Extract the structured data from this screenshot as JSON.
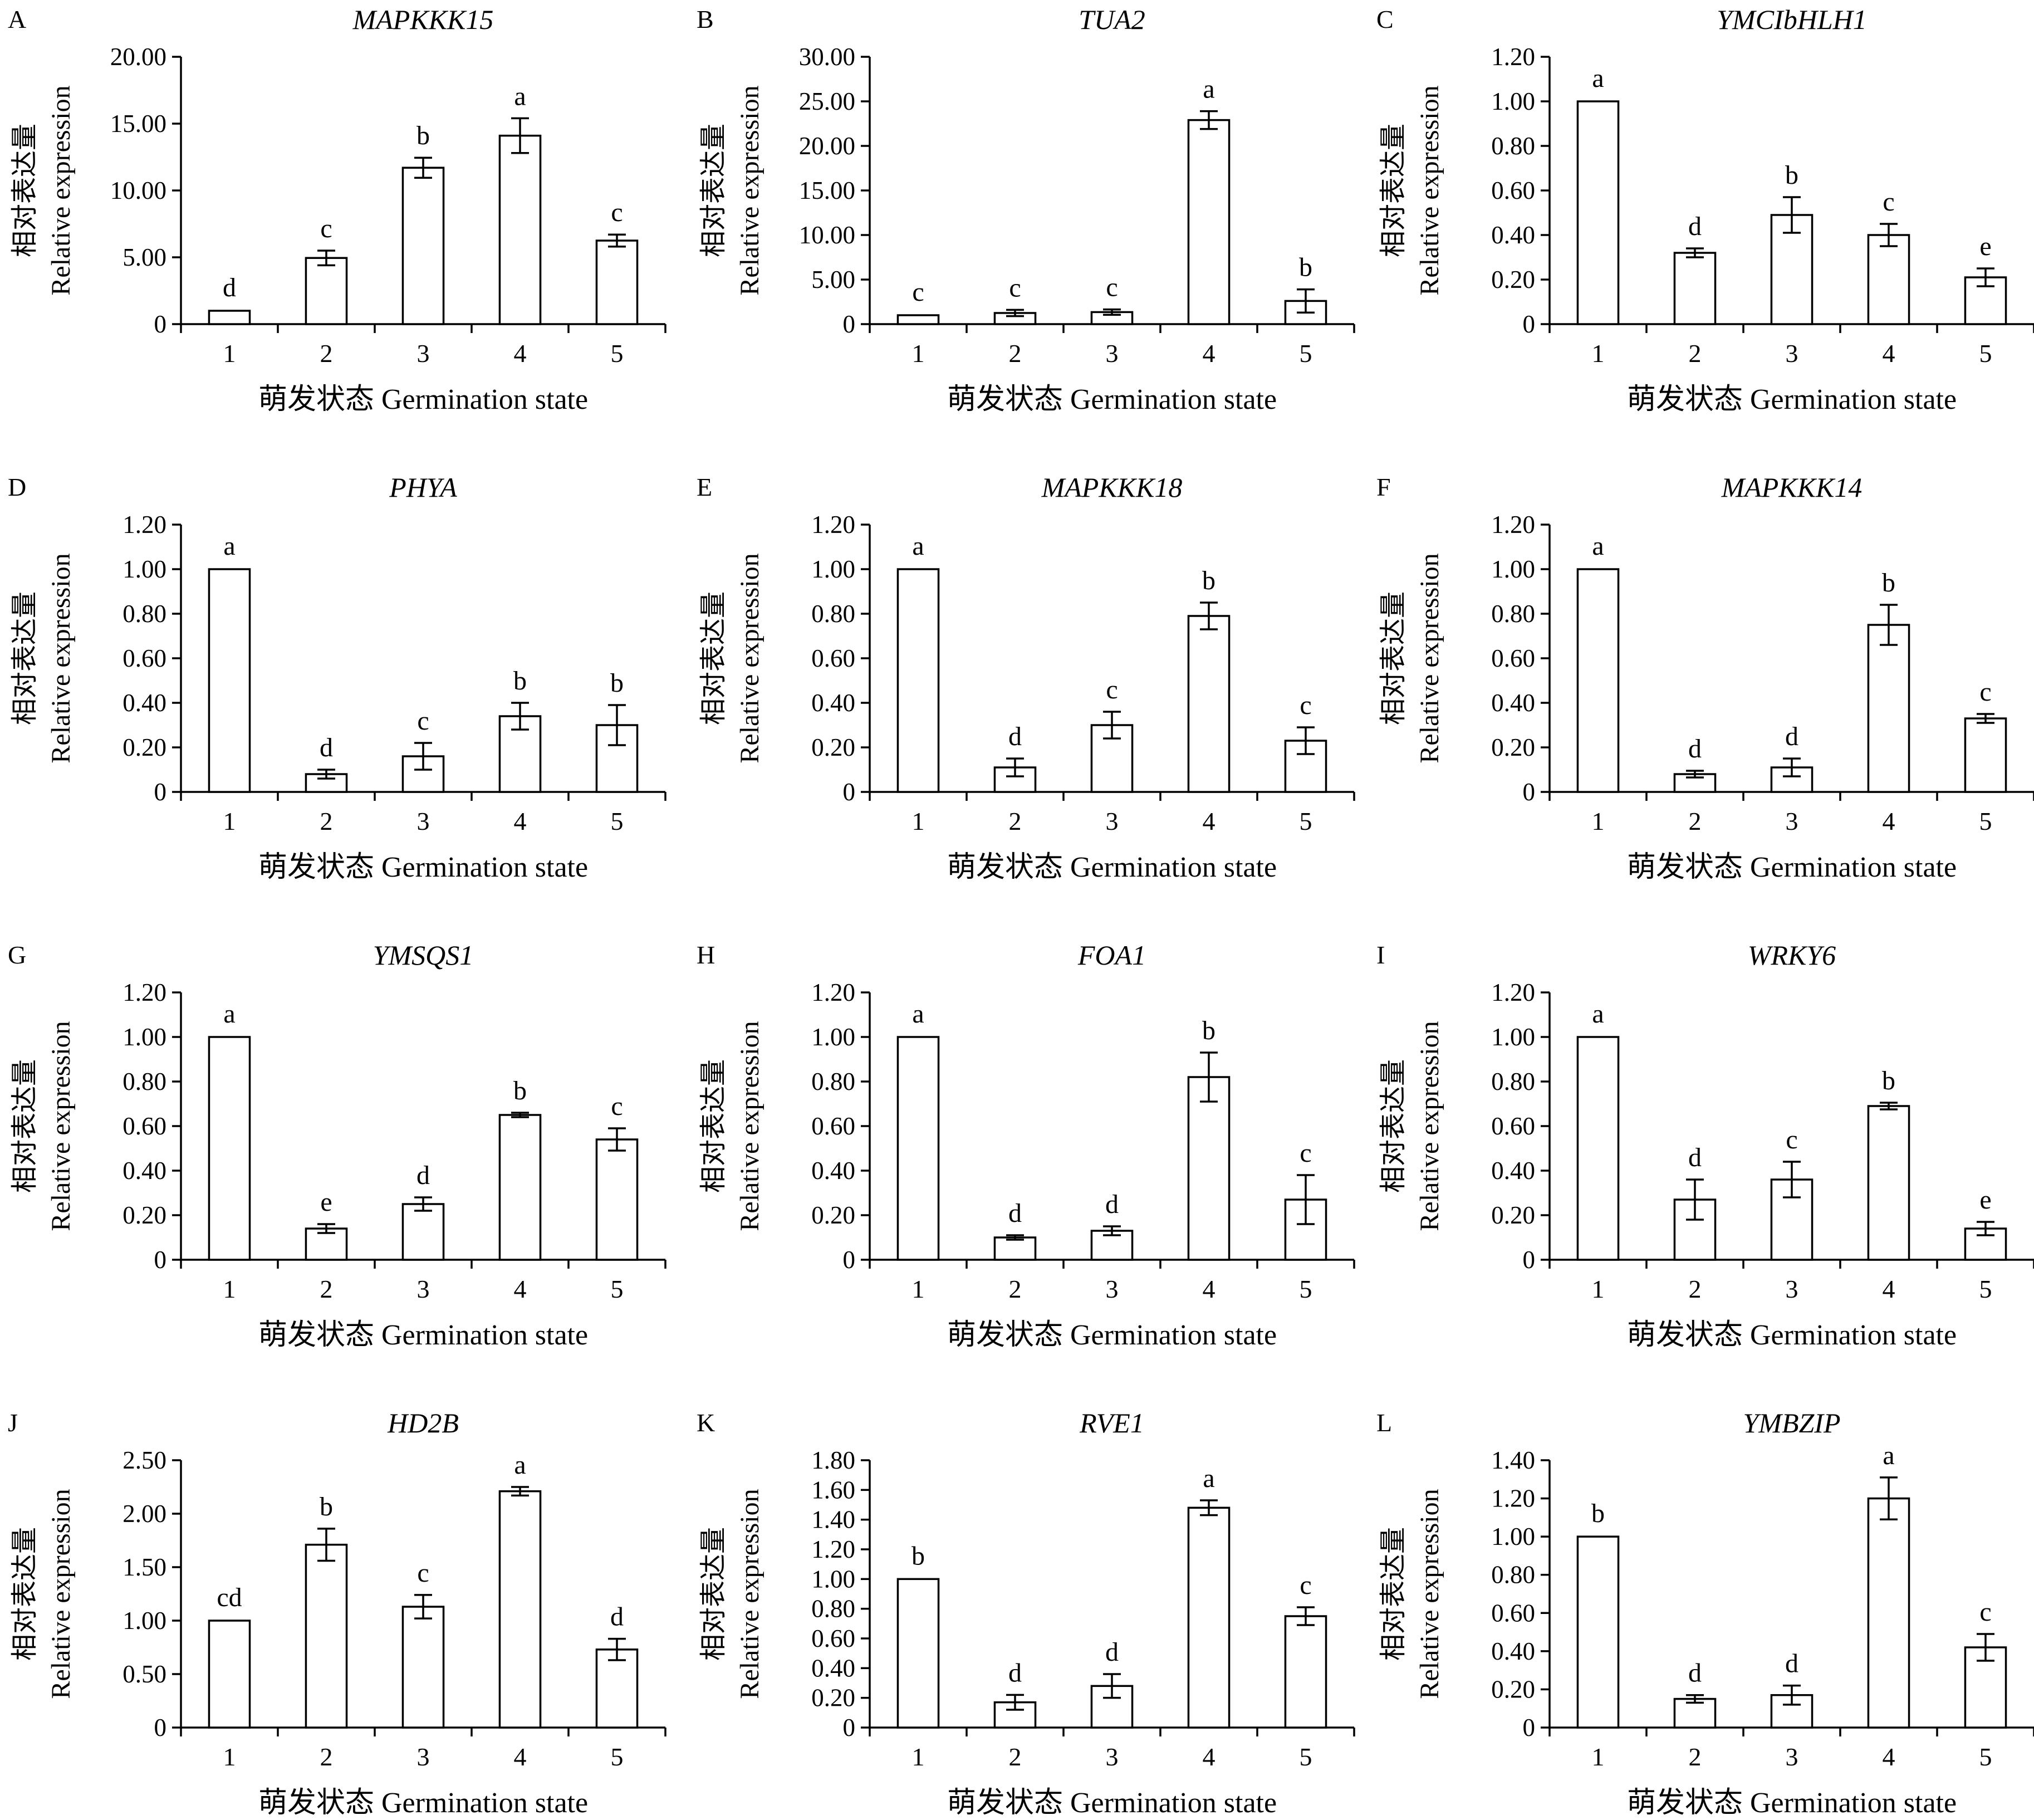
{
  "figure": {
    "ylabel_cn": "相对表达量",
    "ylabel_en": "Relative expression",
    "xlabel": "萌发状态  Germination state",
    "categories": [
      "1",
      "2",
      "3",
      "4",
      "5"
    ]
  },
  "chart_data": [
    {
      "type": "bar",
      "panel": "A",
      "title": "MAPKKK15",
      "categories": [
        "1",
        "2",
        "3",
        "4",
        "5"
      ],
      "values": [
        1.0,
        4.95,
        11.7,
        14.1,
        6.25
      ],
      "errors": [
        0,
        0.55,
        0.75,
        1.3,
        0.45
      ],
      "sig": [
        "d",
        "c",
        "b",
        "a",
        "c"
      ],
      "ylim": [
        0,
        20
      ],
      "yticks": [
        "0",
        "5.00",
        "10.00",
        "15.00",
        "20.00"
      ],
      "ylabel": "相对表达量 Relative expression",
      "xlabel": "萌发状态 Germination state"
    },
    {
      "type": "bar",
      "panel": "B",
      "title": "TUA2",
      "categories": [
        "1",
        "2",
        "3",
        "4",
        "5"
      ],
      "values": [
        1.0,
        1.25,
        1.35,
        22.9,
        2.6
      ],
      "errors": [
        0,
        0.35,
        0.3,
        1.0,
        1.3
      ],
      "sig": [
        "c",
        "c",
        "c",
        "a",
        "b"
      ],
      "ylim": [
        0,
        30
      ],
      "yticks": [
        "0",
        "5.00",
        "10.00",
        "15.00",
        "20.00",
        "25.00",
        "30.00"
      ],
      "ylabel": "相对表达量 Relative expression",
      "xlabel": "萌发状态 Germination state"
    },
    {
      "type": "bar",
      "panel": "C",
      "title": "YMCIbHLH1",
      "categories": [
        "1",
        "2",
        "3",
        "4",
        "5"
      ],
      "values": [
        1.0,
        0.32,
        0.49,
        0.4,
        0.21
      ],
      "errors": [
        0,
        0.02,
        0.08,
        0.05,
        0.04
      ],
      "sig": [
        "a",
        "d",
        "b",
        "c",
        "e"
      ],
      "ylim": [
        0,
        1.2
      ],
      "yticks": [
        "0",
        "0.20",
        "0.40",
        "0.60",
        "0.80",
        "1.00",
        "1.20"
      ],
      "ylabel": "相对表达量 Relative expression",
      "xlabel": "萌发状态 Germination state"
    },
    {
      "type": "bar",
      "panel": "D",
      "title": "PHYA",
      "categories": [
        "1",
        "2",
        "3",
        "4",
        "5"
      ],
      "values": [
        1.0,
        0.08,
        0.16,
        0.34,
        0.3
      ],
      "errors": [
        0,
        0.02,
        0.06,
        0.06,
        0.09
      ],
      "sig": [
        "a",
        "d",
        "c",
        "b",
        "b"
      ],
      "ylim": [
        0,
        1.2
      ],
      "yticks": [
        "0",
        "0.20",
        "0.40",
        "0.60",
        "0.80",
        "1.00",
        "1.20"
      ],
      "ylabel": "相对表达量 Relative expression",
      "xlabel": "萌发状态 Germination state"
    },
    {
      "type": "bar",
      "panel": "E",
      "title": "MAPKKK18",
      "categories": [
        "1",
        "2",
        "3",
        "4",
        "5"
      ],
      "values": [
        1.0,
        0.11,
        0.3,
        0.79,
        0.23
      ],
      "errors": [
        0,
        0.04,
        0.06,
        0.06,
        0.06
      ],
      "sig": [
        "a",
        "d",
        "c",
        "b",
        "c"
      ],
      "ylim": [
        0,
        1.2
      ],
      "yticks": [
        "0",
        "0.20",
        "0.40",
        "0.60",
        "0.80",
        "1.00",
        "1.20"
      ],
      "ylabel": "相对表达量 Relative expression",
      "xlabel": "萌发状态 Germination state"
    },
    {
      "type": "bar",
      "panel": "F",
      "title": "MAPKKK14",
      "categories": [
        "1",
        "2",
        "3",
        "4",
        "5"
      ],
      "values": [
        1.0,
        0.08,
        0.11,
        0.75,
        0.33
      ],
      "errors": [
        0,
        0.015,
        0.04,
        0.09,
        0.02
      ],
      "sig": [
        "a",
        "d",
        "d",
        "b",
        "c"
      ],
      "ylim": [
        0,
        1.2
      ],
      "yticks": [
        "0",
        "0.20",
        "0.40",
        "0.60",
        "0.80",
        "1.00",
        "1.20"
      ],
      "ylabel": "相对表达量 Relative expression",
      "xlabel": "萌发状态 Germination state"
    },
    {
      "type": "bar",
      "panel": "G",
      "title": "YMSQS1",
      "categories": [
        "1",
        "2",
        "3",
        "4",
        "5"
      ],
      "values": [
        1.0,
        0.14,
        0.25,
        0.65,
        0.54
      ],
      "errors": [
        0,
        0.02,
        0.03,
        0.01,
        0.05
      ],
      "sig": [
        "a",
        "e",
        "d",
        "b",
        "c"
      ],
      "ylim": [
        0,
        1.2
      ],
      "yticks": [
        "0",
        "0.20",
        "0.40",
        "0.60",
        "0.80",
        "1.00",
        "1.20"
      ],
      "ylabel": "相对表达量 Relative expression",
      "xlabel": "萌发状态 Germination state"
    },
    {
      "type": "bar",
      "panel": "H",
      "title": "FOA1",
      "categories": [
        "1",
        "2",
        "3",
        "4",
        "5"
      ],
      "values": [
        1.0,
        0.1,
        0.13,
        0.82,
        0.27
      ],
      "errors": [
        0,
        0.01,
        0.02,
        0.11,
        0.11
      ],
      "sig": [
        "a",
        "d",
        "d",
        "b",
        "c"
      ],
      "ylim": [
        0,
        1.2
      ],
      "yticks": [
        "0",
        "0.20",
        "0.40",
        "0.60",
        "0.80",
        "1.00",
        "1.20"
      ],
      "ylabel": "相对表达量 Relative expression",
      "xlabel": "萌发状态 Germination state"
    },
    {
      "type": "bar",
      "panel": "I",
      "title": "WRKY6",
      "categories": [
        "1",
        "2",
        "3",
        "4",
        "5"
      ],
      "values": [
        1.0,
        0.27,
        0.36,
        0.69,
        0.14
      ],
      "errors": [
        0,
        0.09,
        0.08,
        0.015,
        0.03
      ],
      "sig": [
        "a",
        "d",
        "c",
        "b",
        "e"
      ],
      "ylim": [
        0,
        1.2
      ],
      "yticks": [
        "0",
        "0.20",
        "0.40",
        "0.60",
        "0.80",
        "1.00",
        "1.20"
      ],
      "ylabel": "相对表达量 Relative expression",
      "xlabel": "萌发状态 Germination state"
    },
    {
      "type": "bar",
      "panel": "J",
      "title": "HD2B",
      "categories": [
        "1",
        "2",
        "3",
        "4",
        "5"
      ],
      "values": [
        1.0,
        1.71,
        1.13,
        2.21,
        0.73
      ],
      "errors": [
        0,
        0.15,
        0.11,
        0.04,
        0.1
      ],
      "sig": [
        "cd",
        "b",
        "c",
        "a",
        "d"
      ],
      "ylim": [
        0,
        2.5
      ],
      "yticks": [
        "0",
        "0.50",
        "1.00",
        "1.50",
        "2.00",
        "2.50"
      ],
      "ylabel": "相对表达量 Relative expression",
      "xlabel": "萌发状态 Germination state"
    },
    {
      "type": "bar",
      "panel": "K",
      "title": "RVE1",
      "categories": [
        "1",
        "2",
        "3",
        "4",
        "5"
      ],
      "values": [
        1.0,
        0.17,
        0.28,
        1.48,
        0.75
      ],
      "errors": [
        0,
        0.05,
        0.08,
        0.05,
        0.06
      ],
      "sig": [
        "b",
        "d",
        "d",
        "a",
        "c"
      ],
      "ylim": [
        0,
        1.8
      ],
      "yticks": [
        "0",
        "0.20",
        "0.40",
        "0.60",
        "0.80",
        "1.00",
        "1.20",
        "1.40",
        "1.60",
        "1.80"
      ],
      "ylabel": "相对表达量 Relative expression",
      "xlabel": "萌发状态 Germination state"
    },
    {
      "type": "bar",
      "panel": "L",
      "title": "YMBZIP",
      "categories": [
        "1",
        "2",
        "3",
        "4",
        "5"
      ],
      "values": [
        1.0,
        0.15,
        0.17,
        1.2,
        0.42
      ],
      "errors": [
        0,
        0.02,
        0.05,
        0.11,
        0.07
      ],
      "sig": [
        "b",
        "d",
        "d",
        "a",
        "c"
      ],
      "ylim": [
        0,
        1.4
      ],
      "yticks": [
        "0",
        "0.20",
        "0.40",
        "0.60",
        "0.80",
        "1.00",
        "1.20",
        "1.40"
      ],
      "ylabel": "相对表达量 Relative expression",
      "xlabel": "萌发状态 Germination state"
    }
  ]
}
